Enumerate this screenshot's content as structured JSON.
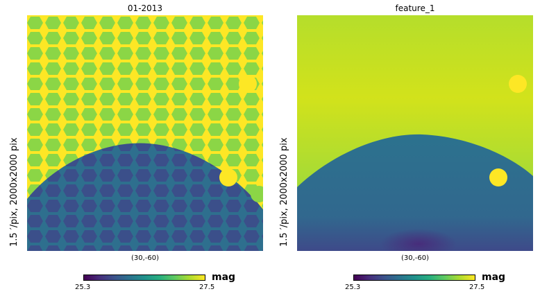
{
  "panels": [
    {
      "title": "01-2013",
      "xlabel": "(30,-60)",
      "ylabel": "1.5 ′/pix,   2000x2000 pix",
      "colorbar": {
        "min_label": "25.3",
        "max_label": "27.5",
        "unit": "mag"
      },
      "map_style": "tiled-hexagon"
    },
    {
      "title": "feature_1",
      "xlabel": "(30,-60)",
      "ylabel": "1.5 ′/pix,   2000x2000 pix",
      "colorbar": {
        "min_label": "25.3",
        "max_label": "27.5",
        "unit": "mag"
      },
      "map_style": "smooth"
    }
  ],
  "chart_data": [
    {
      "type": "heatmap",
      "title": "01-2013",
      "xlabel": "(30,-60)",
      "ylabel": "1.5 ′/pix,   2000x2000 pix",
      "colormap": "viridis",
      "clim": [
        25.3,
        27.5
      ],
      "colorbar_label": "mag",
      "regions": [
        {
          "name": "upper",
          "approx_value": 26.9
        },
        {
          "name": "lower dome",
          "approx_value": 25.7
        }
      ]
    },
    {
      "type": "heatmap",
      "title": "feature_1",
      "xlabel": "(30,-60)",
      "ylabel": "1.5 ′/pix,   2000x2000 pix",
      "colormap": "viridis",
      "clim": [
        25.3,
        27.5
      ],
      "colorbar_label": "mag",
      "regions": [
        {
          "name": "upper",
          "approx_value": 27.1
        },
        {
          "name": "lower dome",
          "approx_value": 26.0
        }
      ]
    }
  ],
  "colors": {
    "viridis": [
      "#440154",
      "#472d7b",
      "#3b528b",
      "#2c728e",
      "#21918c",
      "#28ae80",
      "#5ec962",
      "#addc30",
      "#fde725"
    ],
    "left_upper": "#8bd646",
    "left_lower": "#3b4f8a",
    "left_seam": "#fde725",
    "right_upper": "#c8df2e",
    "right_lower": "#2f7a8c",
    "spot": "#fde725"
  }
}
